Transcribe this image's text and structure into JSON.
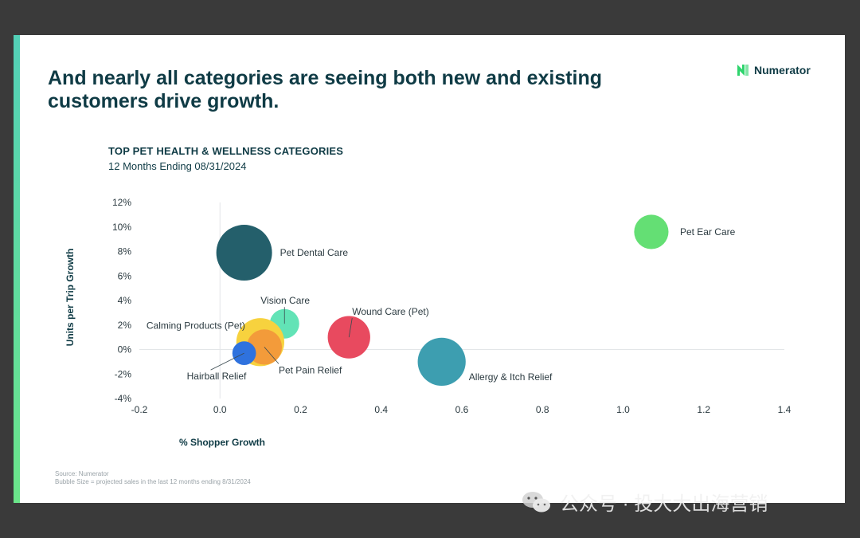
{
  "headline": "And nearly all categories are seeing both new and existing\ncustomers drive growth.",
  "logo": {
    "text": "Numerator",
    "color": "#2fd46d"
  },
  "source": {
    "line1": "Source: Numerator",
    "line2": "Bubble Size = projected sales in the last 12 months ending 8/31/2024"
  },
  "watermark": {
    "text": "公众号 · 投大大出海营销"
  },
  "chart_data": {
    "type": "scatter",
    "title": "TOP PET HEALTH & WELLNESS CATEGORIES",
    "subtitle": "12 Months Ending 08/31/2024",
    "xlabel": "% Shopper Growth",
    "ylabel": "Units per Trip Growth",
    "xlim": [
      -0.2,
      1.4
    ],
    "ylim": [
      -4,
      12
    ],
    "x_ticks": [
      "-0.2",
      "0.0",
      "0.2",
      "0.4",
      "0.6",
      "0.8",
      "1.0",
      "1.2",
      "1.4"
    ],
    "y_ticks": [
      "12%",
      "10%",
      "8%",
      "6%",
      "4%",
      "2%",
      "0%",
      "-2%",
      "-4%"
    ],
    "points": [
      {
        "name": "Pet Dental Care",
        "x": 0.06,
        "y": 7.9,
        "size": 1.0,
        "color": "#245f6b"
      },
      {
        "name": "Pet Ear Care",
        "x": 1.07,
        "y": 9.6,
        "size": 0.38,
        "color": "#64df74"
      },
      {
        "name": "Vision Care",
        "x": 0.16,
        "y": 2.1,
        "size": 0.28,
        "color": "#62e3b6"
      },
      {
        "name": "Wound Care (Pet)",
        "x": 0.32,
        "y": 1.0,
        "size": 0.58,
        "color": "#e84a5f"
      },
      {
        "name": "Calming Products (Pet)",
        "x": 0.1,
        "y": 0.6,
        "size": 0.74,
        "color": "#f7d23e"
      },
      {
        "name": "Pet Pain Relief",
        "x": 0.11,
        "y": 0.2,
        "size": 0.4,
        "color": "#f39b3a"
      },
      {
        "name": "Hairball Relief",
        "x": 0.06,
        "y": -0.3,
        "size": 0.18,
        "color": "#2f72de"
      },
      {
        "name": "Allergy & Itch Relief",
        "x": 0.55,
        "y": -1.0,
        "size": 0.74,
        "color": "#3d9eb0"
      }
    ]
  }
}
